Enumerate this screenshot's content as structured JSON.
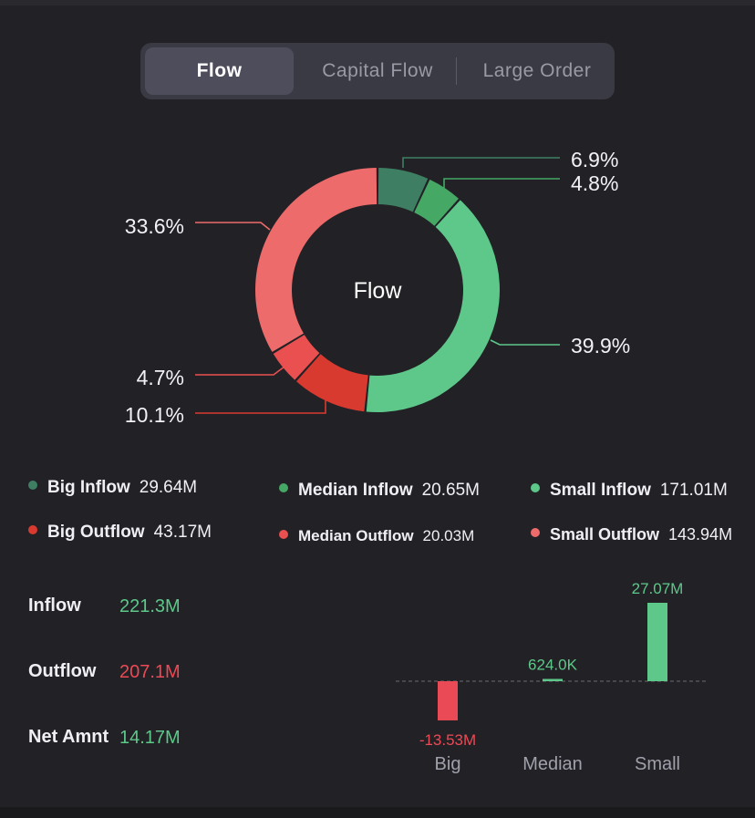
{
  "tabs": [
    {
      "label": "Flow",
      "active": true
    },
    {
      "label": "Capital Flow",
      "active": false
    },
    {
      "label": "Large  Order",
      "active": false
    }
  ],
  "donut": {
    "center_label": "Flow",
    "slices": [
      {
        "label": "6.9%",
        "value": 6.9,
        "color": "#3e7f64"
      },
      {
        "label": "4.8%",
        "value": 4.8,
        "color": "#45a865"
      },
      {
        "label": "39.9%",
        "value": 39.9,
        "color": "#5dc88a"
      },
      {
        "label": "10.1%",
        "value": 10.1,
        "color": "#d93a30"
      },
      {
        "label": "4.7%",
        "value": 4.7,
        "color": "#ea5050"
      },
      {
        "label": "33.6%",
        "value": 33.6,
        "color": "#ee6b6b"
      }
    ]
  },
  "legend": [
    {
      "name": "Big Inflow",
      "value": "29.64M",
      "color": "#3e7f64"
    },
    {
      "name": "Median Inflow",
      "value": "20.65M",
      "color": "#45a865"
    },
    {
      "name": "Small Inflow",
      "value": "171.01M",
      "color": "#5dc88a"
    },
    {
      "name": "Big Outflow",
      "value": "43.17M",
      "color": "#d93a30"
    },
    {
      "name": "Median Outflow",
      "value": "20.03M",
      "color": "#ea5050"
    },
    {
      "name": "Small Outflow",
      "value": "143.94M",
      "color": "#ee6b6b"
    }
  ],
  "stats": {
    "inflow_label": "Inflow",
    "inflow_value": "221.3M",
    "outflow_label": "Outflow",
    "outflow_value": "207.1M",
    "net_label": "Net Amnt",
    "net_value": "14.17M"
  },
  "colors": {
    "positive": "#5dc88a",
    "negative": "#ea4a55"
  },
  "chart_data": [
    {
      "type": "pie",
      "title": "Flow",
      "categories": [
        "Big Inflow",
        "Median Inflow",
        "Small Inflow",
        "Big Outflow",
        "Median Outflow",
        "Small Outflow"
      ],
      "values": [
        6.9,
        4.8,
        39.9,
        10.1,
        4.7,
        33.6
      ]
    },
    {
      "type": "bar",
      "categories": [
        "Big",
        "Median",
        "Small"
      ],
      "values": [
        -13.53,
        0.624,
        27.07
      ],
      "value_labels": [
        "-13.53M",
        "624.0K",
        "27.07M"
      ],
      "ylabel": "",
      "grid": false
    }
  ]
}
